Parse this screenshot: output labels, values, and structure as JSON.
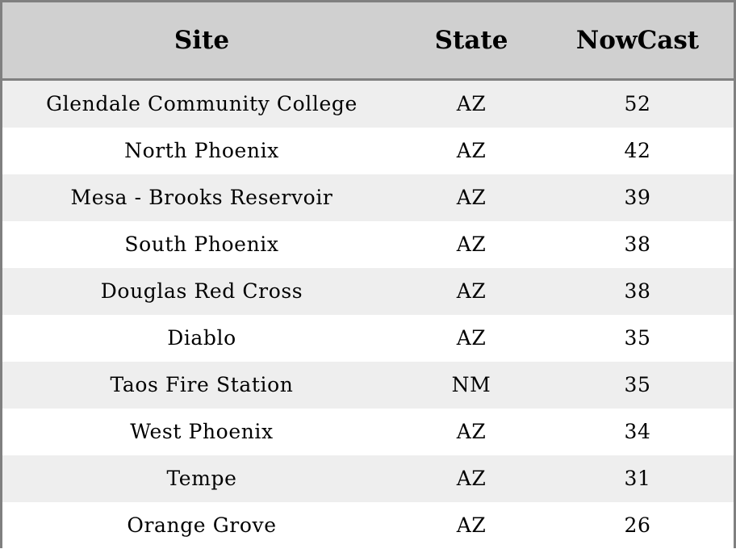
{
  "table": {
    "headers": {
      "site": "Site",
      "state": "State",
      "nowcast": "NowCast"
    },
    "rows": [
      {
        "site": "Glendale Community College",
        "state": "AZ",
        "nowcast": "52"
      },
      {
        "site": "North Phoenix",
        "state": "AZ",
        "nowcast": "42"
      },
      {
        "site": "Mesa - Brooks Reservoir",
        "state": "AZ",
        "nowcast": "39"
      },
      {
        "site": "South Phoenix",
        "state": "AZ",
        "nowcast": "38"
      },
      {
        "site": "Douglas Red Cross",
        "state": "AZ",
        "nowcast": "38"
      },
      {
        "site": "Diablo",
        "state": "AZ",
        "nowcast": "35"
      },
      {
        "site": "Taos Fire Station",
        "state": "NM",
        "nowcast": "35"
      },
      {
        "site": "West Phoenix",
        "state": "AZ",
        "nowcast": "34"
      },
      {
        "site": "Tempe",
        "state": "AZ",
        "nowcast": "31"
      },
      {
        "site": "Orange Grove",
        "state": "AZ",
        "nowcast": "26"
      }
    ]
  },
  "colors": {
    "header_background": "#d0d0d0",
    "stripe_background": "#eeeeee",
    "row_background": "#ffffff",
    "border": "#808080"
  }
}
